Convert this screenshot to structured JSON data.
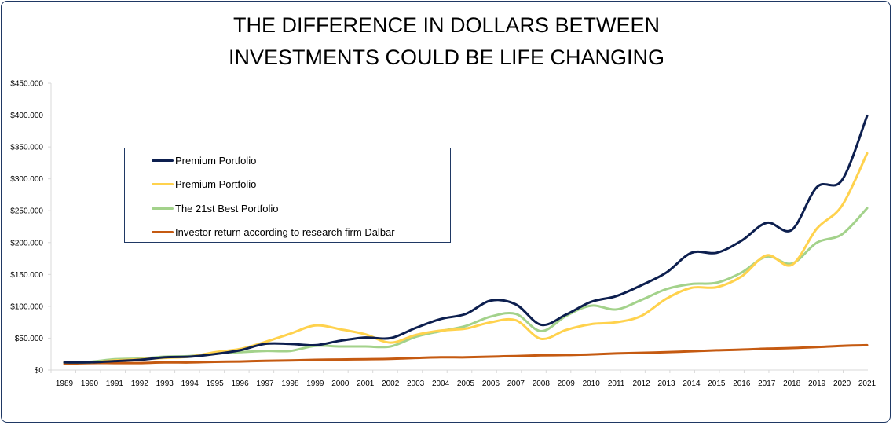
{
  "chart_data": {
    "type": "line",
    "title_lines": [
      "THE DIFFERENCE IN DOLLARS BETWEEN",
      "INVESTMENTS COULD BE LIFE CHANGING"
    ],
    "xlabel": "",
    "ylabel": "",
    "ylim": [
      0,
      450000
    ],
    "yticks": [
      0,
      50000,
      100000,
      150000,
      200000,
      250000,
      300000,
      350000,
      400000,
      450000
    ],
    "ytick_labels": [
      "$0",
      "$50.000",
      "$100.000",
      "$150.000",
      "$200.000",
      "$250.000",
      "$300.000",
      "$350.000",
      "$400.000",
      "$450.000"
    ],
    "grid": false,
    "legend_position": "upper-left",
    "x": [
      "1989",
      "1990",
      "1991",
      "1992",
      "1993",
      "1994",
      "1995",
      "1996",
      "1997",
      "1998",
      "1999",
      "2000",
      "2001",
      "2002",
      "2003",
      "2004",
      "2005",
      "2006",
      "2007",
      "2008",
      "2009",
      "2010",
      "2011",
      "2012",
      "2013",
      "2014",
      "2015",
      "2016",
      "2017",
      "2018",
      "2019",
      "2020",
      "2021"
    ],
    "series": [
      {
        "name": "Premium Portfolio",
        "color": "#0d1f4f",
        "values": [
          12000,
          12000,
          14000,
          16000,
          20000,
          21000,
          25000,
          31000,
          41000,
          41000,
          39000,
          46000,
          51000,
          50000,
          66000,
          80000,
          88000,
          109000,
          103000,
          71000,
          87000,
          107000,
          116000,
          133000,
          153000,
          184000,
          184000,
          203000,
          231000,
          220000,
          287000,
          298000,
          399000
        ]
      },
      {
        "name": "Premium Portfolio",
        "color": "#ffd24d",
        "values": [
          12000,
          12000,
          15000,
          17000,
          19000,
          21000,
          28000,
          33000,
          44000,
          57000,
          70000,
          64000,
          56000,
          43000,
          55000,
          62000,
          65000,
          75000,
          78000,
          49000,
          63000,
          72000,
          75000,
          85000,
          112000,
          129000,
          130000,
          147000,
          180000,
          165000,
          222000,
          258000,
          340000
        ]
      },
      {
        "name": "The 21st Best Portfolio",
        "color": "#a3d28b",
        "values": [
          13000,
          13000,
          17000,
          18000,
          21000,
          22000,
          26000,
          28000,
          30000,
          30000,
          38000,
          37000,
          37000,
          37000,
          52000,
          61000,
          69000,
          84000,
          88000,
          61000,
          85000,
          101000,
          95000,
          110000,
          127000,
          135000,
          137000,
          153000,
          178000,
          167000,
          200000,
          213000,
          254000
        ]
      },
      {
        "name": "Investor return according to research firm Dalbar",
        "color": "#c55a11",
        "values": [
          10000,
          11000,
          11000,
          11000,
          12000,
          12000,
          13000,
          13500,
          14500,
          15000,
          16000,
          16500,
          17000,
          17500,
          19000,
          20000,
          20000,
          21000,
          22000,
          23000,
          23500,
          24500,
          26000,
          27000,
          28000,
          29500,
          31000,
          32000,
          33500,
          34500,
          36000,
          38000,
          39000
        ]
      }
    ]
  }
}
